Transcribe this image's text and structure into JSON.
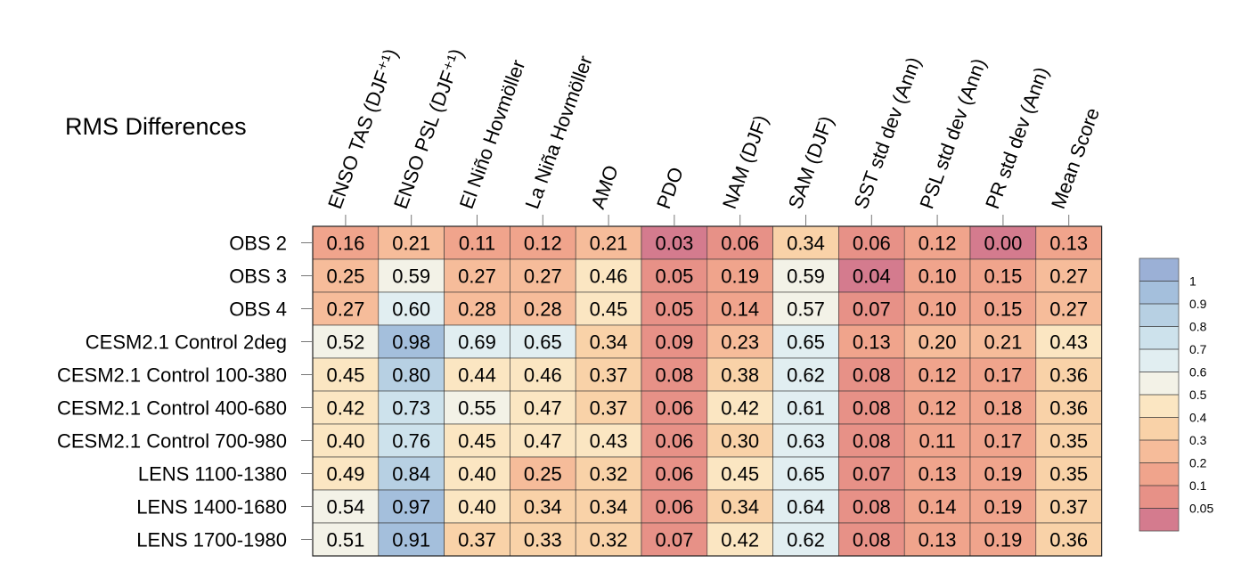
{
  "chart_data": {
    "type": "heatmap",
    "title": "RMS Differences",
    "columns": [
      "ENSO TAS (DJF⁺¹)",
      "ENSO PSL (DJF⁺¹)",
      "El Niño Hovmöller",
      "La Niña Hovmöller",
      "AMO",
      "PDO",
      "NAM (DJF)",
      "SAM (DJF)",
      "SST std dev (Ann)",
      "PSL std dev (Ann)",
      "PR std dev (Ann)",
      "Mean Score"
    ],
    "rows": [
      "OBS 2",
      "OBS 3",
      "OBS 4",
      "CESM2.1 Control 2deg",
      "CESM2.1 Control 100-380",
      "CESM2.1 Control 400-680",
      "CESM2.1 Control 700-980",
      "LENS 1100-1380",
      "LENS 1400-1680",
      "LENS 1700-1980"
    ],
    "values": [
      [
        "0.16",
        "0.21",
        "0.11",
        "0.12",
        "0.21",
        "0.03",
        "0.06",
        "0.34",
        "0.06",
        "0.12",
        "0.00",
        "0.13"
      ],
      [
        "0.25",
        "0.59",
        "0.27",
        "0.27",
        "0.46",
        "0.05",
        "0.19",
        "0.59",
        "0.04",
        "0.10",
        "0.15",
        "0.27"
      ],
      [
        "0.27",
        "0.60",
        "0.28",
        "0.28",
        "0.45",
        "0.05",
        "0.14",
        "0.57",
        "0.07",
        "0.10",
        "0.15",
        "0.27"
      ],
      [
        "0.52",
        "0.98",
        "0.69",
        "0.65",
        "0.34",
        "0.09",
        "0.23",
        "0.65",
        "0.13",
        "0.20",
        "0.21",
        "0.43"
      ],
      [
        "0.45",
        "0.80",
        "0.44",
        "0.46",
        "0.37",
        "0.08",
        "0.38",
        "0.62",
        "0.08",
        "0.12",
        "0.17",
        "0.36"
      ],
      [
        "0.42",
        "0.73",
        "0.55",
        "0.47",
        "0.37",
        "0.06",
        "0.42",
        "0.61",
        "0.08",
        "0.12",
        "0.18",
        "0.36"
      ],
      [
        "0.40",
        "0.76",
        "0.45",
        "0.47",
        "0.43",
        "0.06",
        "0.30",
        "0.63",
        "0.08",
        "0.11",
        "0.17",
        "0.35"
      ],
      [
        "0.49",
        "0.84",
        "0.40",
        "0.25",
        "0.32",
        "0.06",
        "0.45",
        "0.65",
        "0.07",
        "0.13",
        "0.19",
        "0.35"
      ],
      [
        "0.54",
        "0.97",
        "0.40",
        "0.34",
        "0.34",
        "0.06",
        "0.34",
        "0.64",
        "0.08",
        "0.14",
        "0.19",
        "0.37"
      ],
      [
        "0.51",
        "0.91",
        "0.37",
        "0.33",
        "0.32",
        "0.07",
        "0.42",
        "0.62",
        "0.08",
        "0.13",
        "0.19",
        "0.36"
      ]
    ],
    "colorbar": {
      "levels": [
        "1",
        "0.9",
        "0.8",
        "0.7",
        "0.6",
        "0.5",
        "0.4",
        "0.3",
        "0.2",
        "0.1",
        "0.05"
      ],
      "bounds": [
        0,
        0.05,
        0.1,
        0.2,
        0.3,
        0.4,
        0.5,
        0.6,
        0.7,
        0.8,
        0.9,
        1.0
      ],
      "colors": [
        "#d47b8e",
        "#e79187",
        "#f0a48c",
        "#f6bc9a",
        "#f9d2a8",
        "#fbe6c2",
        "#f3f2e7",
        "#e1eef1",
        "#cde2ec",
        "#b7d0e3",
        "#a4bfdc",
        "#9bb0d6"
      ]
    }
  }
}
